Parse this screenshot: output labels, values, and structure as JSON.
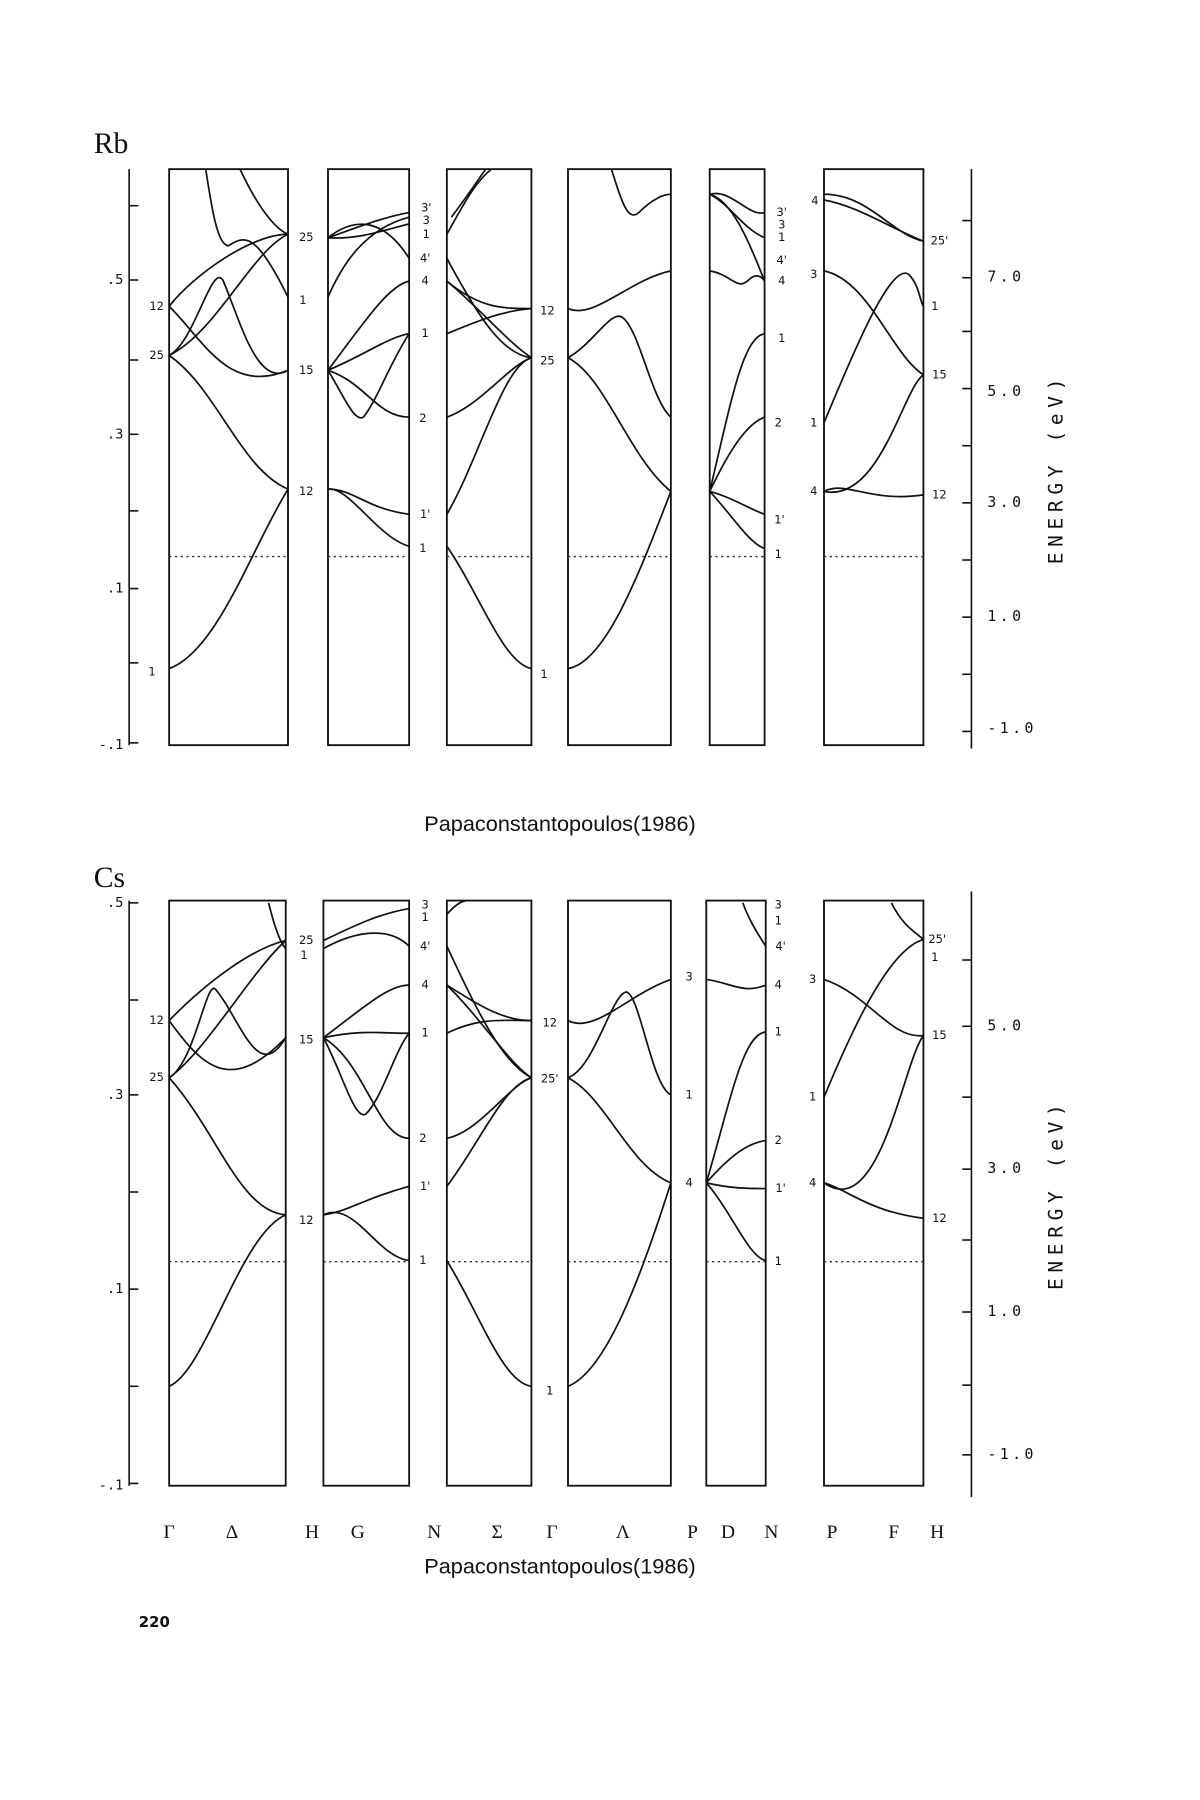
{
  "rb": {
    "title": "Rb",
    "left_ticks": [
      ".5",
      ".3",
      ".1",
      "-.1"
    ],
    "right_ticks": [
      "7.0",
      "5.0",
      "3.0",
      "1.0",
      "-1.0"
    ],
    "axis_label": "ENERGY (eV)",
    "point_labels": [
      "12",
      "25",
      "1",
      "25",
      "1",
      "15",
      "12",
      "3'",
      "3",
      "1",
      "4'",
      "4",
      "1",
      "2",
      "1'",
      "1",
      "12",
      "25",
      "1",
      "3'",
      "3",
      "1",
      "4'",
      "4",
      "1",
      "2",
      "1'",
      "1",
      "4",
      "3",
      "1",
      "4",
      "25'",
      "1",
      "15",
      "12"
    ],
    "caption": "Papaconstantopoulos(1986)"
  },
  "cs": {
    "title": "Cs",
    "left_ticks": [
      ".5",
      ".3",
      ".1",
      "-.1"
    ],
    "right_ticks": [
      "5.0",
      "3.0",
      "1.0",
      "-1.0"
    ],
    "axis_label": "ENERGY (eV)",
    "point_labels": [
      "12",
      "25",
      "25",
      "1",
      "15",
      "12",
      "3",
      "1",
      "4'",
      "4",
      "1",
      "2",
      "1'",
      "1",
      "12",
      "25'",
      "1",
      "3",
      "1",
      "4",
      "3",
      "1",
      "4'",
      "4",
      "1",
      "2",
      "1'",
      "1",
      "3",
      "1",
      "4",
      "25'",
      "1",
      "15",
      "12"
    ],
    "symmetry_points": [
      "Γ",
      "Δ",
      "H",
      "G",
      "N",
      "Σ",
      "Γ",
      "Λ",
      "P",
      "D",
      "N",
      "P",
      "F",
      "H"
    ],
    "caption": "Papaconstantopoulos(1986)"
  },
  "page_number": "220"
}
